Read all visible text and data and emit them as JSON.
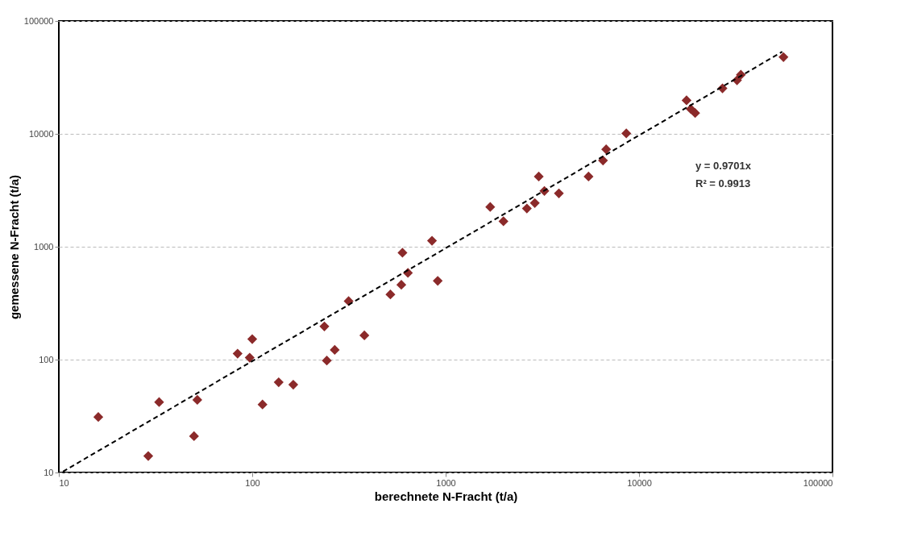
{
  "chart_data": {
    "type": "scatter",
    "xlabel": "berechnete N-Fracht (t/a)",
    "ylabel": "gemessene N-Fracht (t/a)",
    "log": "xy",
    "grid": "y",
    "marker": "diamond",
    "xlim": [
      10,
      100000
    ],
    "ylim": [
      10,
      100000
    ],
    "xticks": [
      10,
      100,
      1000,
      10000,
      100000
    ],
    "yticks": [
      10,
      100,
      1000,
      10000,
      100000
    ],
    "annotations": [
      "y = 0.9701x",
      "R² = 0.9913"
    ],
    "series": [
      {
        "color": "#8b2a2a",
        "x": [
          16,
          29,
          33,
          52,
          50,
          84,
          100,
          97,
          113,
          137,
          163,
          236,
          243,
          267,
          380,
          315,
          518,
          590,
          598,
          638,
          910,
          850,
          1700,
          1990,
          2630,
          2890,
          3030,
          3240,
          3850,
          5480,
          6510,
          6760,
          8590,
          55800,
          33600,
          32100,
          27000,
          17600,
          19500,
          18500
        ],
        "values": [
          31,
          14,
          42,
          44,
          21,
          113,
          152,
          104,
          40,
          63,
          60,
          197,
          98,
          122,
          164,
          330,
          378,
          460,
          885,
          587,
          499,
          1130,
          2250,
          1680,
          2180,
          2440,
          4190,
          3120,
          2970,
          4190,
          5800,
          7300,
          10100,
          47900,
          33400,
          29800,
          25300,
          19800,
          15300,
          16600
        ]
      },
      {
        "type": "line",
        "color": "#000000",
        "line_style": "dashed",
        "marker": "none",
        "x": [
          10.5,
          55000
        ],
        "values": [
          10.19,
          53356
        ]
      }
    ]
  }
}
